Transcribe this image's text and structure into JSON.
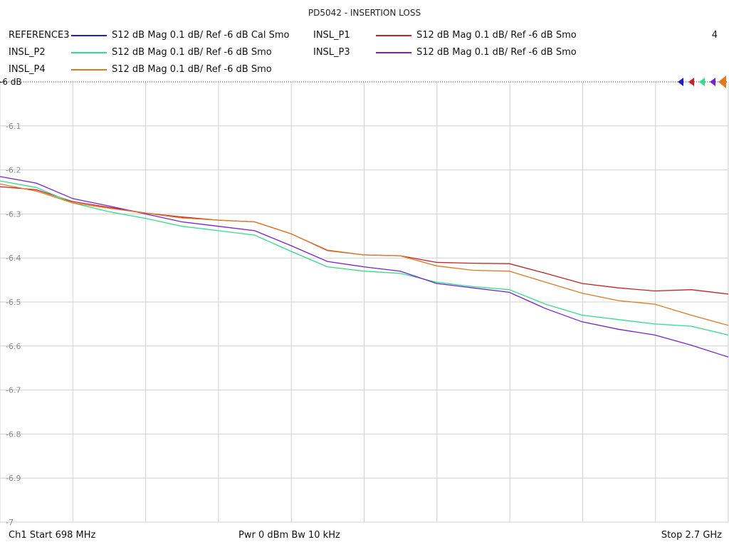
{
  "chart_data": {
    "type": "line",
    "title": "PD5042 - INSERTION LOSS",
    "x_start_mhz": 698,
    "x_stop_mhz": 2700,
    "ylim": [
      -7,
      -6
    ],
    "y_ticks": [
      "-6.1",
      "-6.2",
      "-6.3",
      "-6.4",
      "-6.5",
      "-6.6",
      "-6.7",
      "-6.8",
      "-6.9",
      "-7"
    ],
    "y_tick_values": [
      -6.1,
      -6.2,
      -6.3,
      -6.4,
      -6.5,
      -6.6,
      -6.7,
      -6.8,
      -6.9,
      -7.0
    ],
    "ref_label": "-6 dB",
    "ref_value": -6,
    "grid": true,
    "x": [
      698,
      798,
      898,
      998,
      1098,
      1198,
      1298,
      1398,
      1498,
      1598,
      1698,
      1798,
      1898,
      1998,
      2098,
      2198,
      2298,
      2398,
      2498,
      2598,
      2700
    ],
    "series": [
      {
        "name": "REFERENCE3",
        "desc": "S12  dB Mag  0.1 dB/ Ref -6 dB  Cal Smo",
        "color": "#1f1fcc",
        "values": null
      },
      {
        "name": "INSL_P1",
        "desc": "S12  dB Mag  0.1 dB/ Ref -6 dB  Smo",
        "color": "#cc1f1f",
        "values": [
          -6.238,
          -6.245,
          -6.272,
          -6.285,
          -6.298,
          -6.307,
          -6.314,
          -6.318,
          -6.345,
          -6.383,
          -6.393,
          -6.395,
          -6.41,
          -6.412,
          -6.413,
          -6.435,
          -6.458,
          -6.468,
          -6.475,
          -6.472,
          -6.482
        ]
      },
      {
        "name": "INSL_P2",
        "desc": "S12  dB Mag  0.1 dB/ Ref -6 dB  Smo",
        "color": "#2ee08a",
        "values": [
          -6.225,
          -6.24,
          -6.275,
          -6.295,
          -6.31,
          -6.328,
          -6.338,
          -6.348,
          -6.385,
          -6.42,
          -6.43,
          -6.435,
          -6.455,
          -6.465,
          -6.472,
          -6.505,
          -6.53,
          -6.54,
          -6.55,
          -6.555,
          -6.575
        ]
      },
      {
        "name": "INSL_P3",
        "desc": "S12  dB Mag  0.1 dB/ Ref -6 dB  Smo",
        "color": "#7a1fd6",
        "values": [
          -6.215,
          -6.23,
          -6.265,
          -6.282,
          -6.3,
          -6.318,
          -6.328,
          -6.338,
          -6.372,
          -6.408,
          -6.42,
          -6.43,
          -6.458,
          -6.468,
          -6.478,
          -6.515,
          -6.545,
          -6.562,
          -6.575,
          -6.598,
          -6.625
        ]
      },
      {
        "name": "INSL_P4",
        "desc": "S12  dB Mag  0.1 dB/ Ref -6 dB  Smo",
        "color": "#e07a1f",
        "values": [
          -6.232,
          -6.248,
          -6.275,
          -6.287,
          -6.298,
          -6.309,
          -6.314,
          -6.318,
          -6.345,
          -6.382,
          -6.393,
          -6.395,
          -6.418,
          -6.428,
          -6.43,
          -6.455,
          -6.48,
          -6.497,
          -6.505,
          -6.53,
          -6.553
        ]
      }
    ],
    "marker_count": "4"
  },
  "footer": {
    "start": "Ch1  Start  698 MHz",
    "power": "Pwr  0 dBm  Bw  10 kHz",
    "stop": "Stop  2.7 GHz"
  }
}
